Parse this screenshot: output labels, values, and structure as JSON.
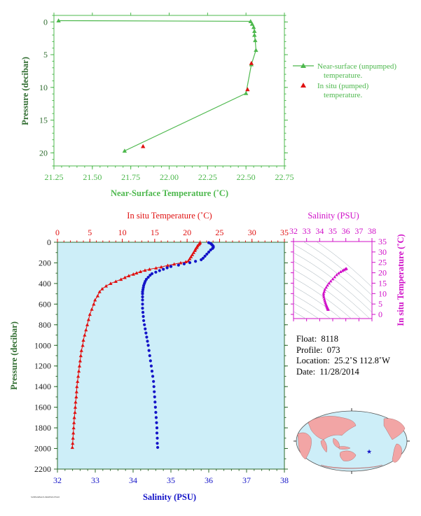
{
  "colors": {
    "green": "#4db84d",
    "red": "#e01010",
    "blue": "#1414c8",
    "magenta": "#d010c8",
    "axis_green": "#2e6b2e",
    "plot_bg": "#cdeef8"
  },
  "top_chart": {
    "chart_data": {
      "type": "line",
      "xlabel": "Near-Surface Temperature (˚C)",
      "ylabel": "Pressure (decibar)",
      "xlim": [
        21.25,
        22.75
      ],
      "ylim": [
        22,
        -1
      ],
      "xticks": [
        "21.25",
        "21.50",
        "21.75",
        "22.00",
        "22.25",
        "22.50",
        "22.75"
      ],
      "yticks": [
        "0",
        "5",
        "10",
        "15",
        "20"
      ],
      "legend_position": "right",
      "series": [
        {
          "name": "Near-surface (unpumped) temperature.",
          "marker": "triangle",
          "points": [
            [
              21.28,
              -0.2
            ],
            [
              22.53,
              -0.1
            ],
            [
              22.54,
              0.3
            ],
            [
              22.55,
              0.8
            ],
            [
              22.555,
              1.4
            ],
            [
              22.555,
              2.0
            ],
            [
              22.56,
              2.8
            ],
            [
              22.565,
              4.3
            ],
            [
              22.535,
              6.5
            ],
            [
              22.5,
              10.9
            ],
            [
              21.71,
              19.7
            ]
          ]
        },
        {
          "name": "In situ (pumped) temperature.",
          "marker": "triangle",
          "points": [
            [
              22.535,
              6.3
            ],
            [
              22.51,
              10.3
            ],
            [
              21.83,
              19.0
            ]
          ]
        }
      ]
    },
    "legend": {
      "line1a": "Near-surface (unpumped)",
      "line1b": "temperature.",
      "line2a": "In situ (pumped)",
      "line2b": "temperature."
    }
  },
  "main_chart": {
    "chart_data": {
      "type": "line",
      "ylabel": "Pressure (decibar)",
      "ylim": [
        2200,
        0
      ],
      "yticks": [
        "0",
        "200",
        "400",
        "600",
        "800",
        "1000",
        "1200",
        "1400",
        "1600",
        "1800",
        "2000",
        "2200"
      ],
      "top_axis": {
        "label": "In situ Temperature (˚C)",
        "lim": [
          0,
          35
        ],
        "ticks": [
          "0",
          "5",
          "10",
          "15",
          "20",
          "25",
          "30",
          "35"
        ]
      },
      "bottom_axis": {
        "label": "Salinity (PSU)",
        "lim": [
          32,
          38
        ],
        "ticks": [
          "32",
          "33",
          "34",
          "35",
          "36",
          "37",
          "38"
        ]
      },
      "grid": false,
      "series": [
        {
          "name": "In situ Temperature (˚C)",
          "axis": "top",
          "marker": "triangle",
          "points": [
            [
              22.0,
              4
            ],
            [
              21.9,
              12
            ],
            [
              21.8,
              22
            ],
            [
              21.6,
              35
            ],
            [
              21.5,
              50
            ],
            [
              21.3,
              65
            ],
            [
              21.2,
              80
            ],
            [
              21.0,
              100
            ],
            [
              20.8,
              120
            ],
            [
              20.6,
              140
            ],
            [
              20.4,
              160
            ],
            [
              20.2,
              180
            ],
            [
              19.8,
              190
            ],
            [
              19.0,
              200
            ],
            [
              18.0,
              212
            ],
            [
              17.0,
              225
            ],
            [
              16.0,
              240
            ],
            [
              15.2,
              250
            ],
            [
              14.2,
              262
            ],
            [
              13.5,
              272
            ],
            [
              12.8,
              285
            ],
            [
              12.2,
              298
            ],
            [
              11.7,
              310
            ],
            [
              11.0,
              325
            ],
            [
              10.4,
              342
            ],
            [
              9.8,
              360
            ],
            [
              9.0,
              380
            ],
            [
              8.2,
              400
            ],
            [
              7.5,
              425
            ],
            [
              6.9,
              452
            ],
            [
              6.5,
              480
            ],
            [
              6.2,
              520
            ],
            [
              5.8,
              560
            ],
            [
              5.6,
              600
            ],
            [
              5.3,
              650
            ],
            [
              5.0,
              700
            ],
            [
              4.8,
              750
            ],
            [
              4.6,
              800
            ],
            [
              4.4,
              850
            ],
            [
              4.2,
              900
            ],
            [
              4.0,
              950
            ],
            [
              3.9,
              1000
            ],
            [
              3.7,
              1050
            ],
            [
              3.6,
              1100
            ],
            [
              3.5,
              1150
            ],
            [
              3.4,
              1200
            ],
            [
              3.3,
              1250
            ],
            [
              3.2,
              1300
            ],
            [
              3.1,
              1350
            ],
            [
              3.0,
              1400
            ],
            [
              2.95,
              1450
            ],
            [
              2.9,
              1500
            ],
            [
              2.8,
              1550
            ],
            [
              2.75,
              1600
            ],
            [
              2.7,
              1650
            ],
            [
              2.6,
              1700
            ],
            [
              2.55,
              1750
            ],
            [
              2.5,
              1800
            ],
            [
              2.45,
              1850
            ],
            [
              2.4,
              1900
            ],
            [
              2.35,
              1950
            ],
            [
              2.3,
              1990
            ]
          ]
        },
        {
          "name": "Salinity (PSU)",
          "axis": "bottom",
          "marker": "dot",
          "points": [
            [
              36.0,
              4
            ],
            [
              36.05,
              12
            ],
            [
              36.08,
              22
            ],
            [
              36.1,
              30
            ],
            [
              36.12,
              40
            ],
            [
              36.12,
              50
            ],
            [
              36.1,
              60
            ],
            [
              36.05,
              75
            ],
            [
              36.0,
              95
            ],
            [
              35.95,
              115
            ],
            [
              35.9,
              135
            ],
            [
              35.85,
              155
            ],
            [
              35.8,
              170
            ],
            [
              35.65,
              185
            ],
            [
              35.5,
              198
            ],
            [
              35.35,
              210
            ],
            [
              35.2,
              222
            ],
            [
              35.0,
              235
            ],
            [
              34.9,
              248
            ],
            [
              34.8,
              262
            ],
            [
              34.7,
              275
            ],
            [
              34.6,
              290
            ],
            [
              34.5,
              305
            ],
            [
              34.45,
              320
            ],
            [
              34.4,
              340
            ],
            [
              34.35,
              360
            ],
            [
              34.32,
              380
            ],
            [
              34.3,
              400
            ],
            [
              34.28,
              420
            ],
            [
              34.27,
              440
            ],
            [
              34.26,
              460
            ],
            [
              34.25,
              480
            ],
            [
              34.25,
              500
            ],
            [
              34.25,
              530
            ],
            [
              34.25,
              560
            ],
            [
              34.25,
              600
            ],
            [
              34.25,
              640
            ],
            [
              34.26,
              680
            ],
            [
              34.27,
              720
            ],
            [
              34.28,
              760
            ],
            [
              34.3,
              800
            ],
            [
              34.32,
              840
            ],
            [
              34.34,
              880
            ],
            [
              34.36,
              920
            ],
            [
              34.38,
              960
            ],
            [
              34.4,
              1000
            ],
            [
              34.42,
              1050
            ],
            [
              34.44,
              1100
            ],
            [
              34.46,
              1150
            ],
            [
              34.48,
              1200
            ],
            [
              34.5,
              1250
            ],
            [
              34.52,
              1300
            ],
            [
              34.54,
              1350
            ],
            [
              34.55,
              1400
            ],
            [
              34.56,
              1450
            ],
            [
              34.57,
              1500
            ],
            [
              34.58,
              1550
            ],
            [
              34.59,
              1600
            ],
            [
              34.6,
              1650
            ],
            [
              34.61,
              1700
            ],
            [
              34.62,
              1750
            ],
            [
              34.63,
              1800
            ],
            [
              34.63,
              1850
            ],
            [
              34.64,
              1900
            ],
            [
              34.64,
              1950
            ],
            [
              34.65,
              1990
            ]
          ]
        }
      ]
    }
  },
  "ts_chart": {
    "chart_data": {
      "type": "scatter",
      "top_axis": {
        "label": "Salinity (PSU)",
        "lim": [
          32,
          38
        ],
        "ticks": [
          "32",
          "33",
          "34",
          "35",
          "36",
          "37",
          "38"
        ]
      },
      "right_axis": {
        "label": "In situ Temperature (˚C)",
        "lim": [
          -2,
          35
        ],
        "ticks": [
          "0",
          "5",
          "10",
          "15",
          "20",
          "25",
          "30",
          "35"
        ]
      },
      "points": [
        [
          34.65,
          2.3
        ],
        [
          34.64,
          2.5
        ],
        [
          34.62,
          2.8
        ],
        [
          34.6,
          3.1
        ],
        [
          34.58,
          3.4
        ],
        [
          34.55,
          3.8
        ],
        [
          34.52,
          4.3
        ],
        [
          34.48,
          4.9
        ],
        [
          34.44,
          5.6
        ],
        [
          34.4,
          6.4
        ],
        [
          34.36,
          7.3
        ],
        [
          34.32,
          8.3
        ],
        [
          34.3,
          9.2
        ],
        [
          34.3,
          10.1
        ],
        [
          34.35,
          11.0
        ],
        [
          34.4,
          12.0
        ],
        [
          34.5,
          13.0
        ],
        [
          34.6,
          14.0
        ],
        [
          34.72,
          15.0
        ],
        [
          34.85,
          16.0
        ],
        [
          35.0,
          17.0
        ],
        [
          35.15,
          18.0
        ],
        [
          35.3,
          19.0
        ],
        [
          35.45,
          19.8
        ],
        [
          35.6,
          20.5
        ],
        [
          35.75,
          21.0
        ],
        [
          35.85,
          21.4
        ],
        [
          35.95,
          21.7
        ],
        [
          36.0,
          21.9
        ],
        [
          36.05,
          22.0
        ]
      ]
    }
  },
  "info": {
    "float_label": "Float:",
    "float_value": "8118",
    "profile_label": "Profile:",
    "profile_value": "073",
    "location_label": "Location:",
    "location_value": "25.2˚S  112.8˚W",
    "date_label": "Date:",
    "date_value": "11/28/2014"
  },
  "map": {
    "marker_icon": "star-icon",
    "land_color": "#f2a5a5",
    "ocean_color": "#cdeef8"
  },
  "footer": {
    "stamp": "SUBSURFACE-PROFILE-F8118"
  }
}
